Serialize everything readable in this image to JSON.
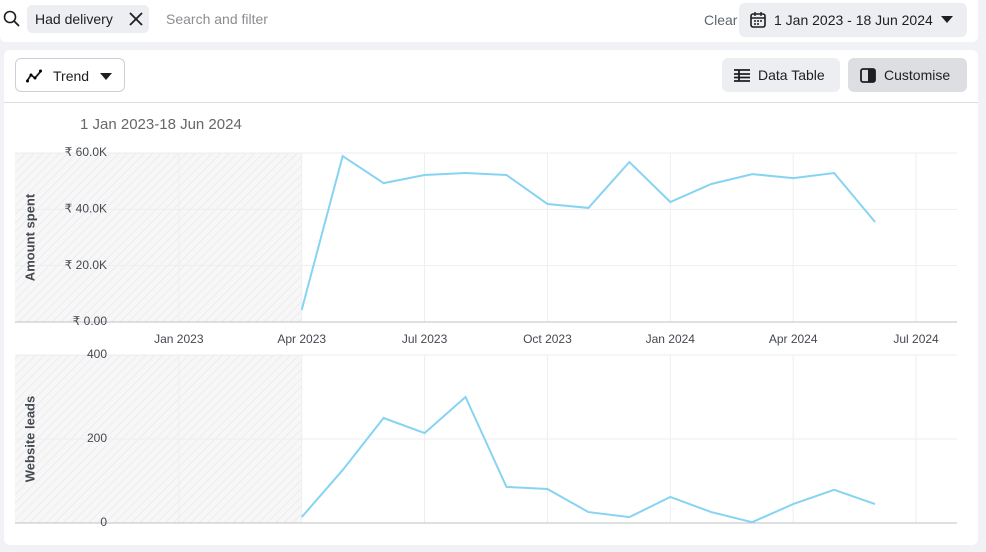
{
  "toolbar": {
    "filter_chip": "Had delivery",
    "search_placeholder": "Search and filter",
    "clear": "Clear",
    "date_range": "1 Jan 2023 - 18 Jun 2024"
  },
  "controls": {
    "view": "Trend",
    "data_table": "Data Table",
    "customise": "Customise"
  },
  "subtitle": "1 Jan 2023-18 Jun 2024",
  "chart_data": [
    {
      "type": "line",
      "y_label": "Amount spent",
      "color": "#86d4f2",
      "x": [
        "2023-04",
        "2023-05",
        "2023-06",
        "2023-07",
        "2023-08",
        "2023-09",
        "2023-10",
        "2023-11",
        "2023-12",
        "2024-01",
        "2024-02",
        "2024-03",
        "2024-04",
        "2024-05",
        "2024-06"
      ],
      "values": [
        4300,
        58900,
        49300,
        52200,
        52900,
        52200,
        41900,
        40500,
        56800,
        42600,
        49000,
        52500,
        51100,
        52900,
        35500
      ],
      "xlim": [
        "2022-09",
        "2024-08"
      ],
      "xticks": [
        {
          "value": "2023-01",
          "label": "Jan 2023"
        },
        {
          "value": "2023-04",
          "label": "Apr 2023"
        },
        {
          "value": "2023-07",
          "label": "Jul 2023"
        },
        {
          "value": "2023-10",
          "label": "Oct 2023"
        },
        {
          "value": "2024-01",
          "label": "Jan 2024"
        },
        {
          "value": "2024-04",
          "label": "Apr 2024"
        },
        {
          "value": "2024-07",
          "label": "Jul 2024"
        }
      ],
      "ylim": [
        0,
        60000
      ],
      "yticks": [
        {
          "value": 0,
          "label": "₹ 0.00"
        },
        {
          "value": 20000,
          "label": "₹ 20.0K"
        },
        {
          "value": 40000,
          "label": "₹ 40.0K"
        },
        {
          "value": 60000,
          "label": "₹ 60.0K"
        }
      ],
      "grid": true
    },
    {
      "type": "line",
      "y_label": "Website leads",
      "color": "#86d4f2",
      "x": [
        "2023-04",
        "2023-05",
        "2023-06",
        "2023-07",
        "2023-08",
        "2023-09",
        "2023-10",
        "2023-11",
        "2023-12",
        "2024-01",
        "2024-02",
        "2024-03",
        "2024-04",
        "2024-05",
        "2024-06"
      ],
      "values": [
        14,
        126,
        250,
        214,
        300,
        86,
        81,
        26,
        14,
        62,
        26,
        2,
        45,
        79,
        45
      ],
      "xlim": [
        "2022-09",
        "2024-08"
      ],
      "ylim": [
        0,
        400
      ],
      "yticks": [
        0,
        200,
        400
      ],
      "grid": true
    }
  ]
}
